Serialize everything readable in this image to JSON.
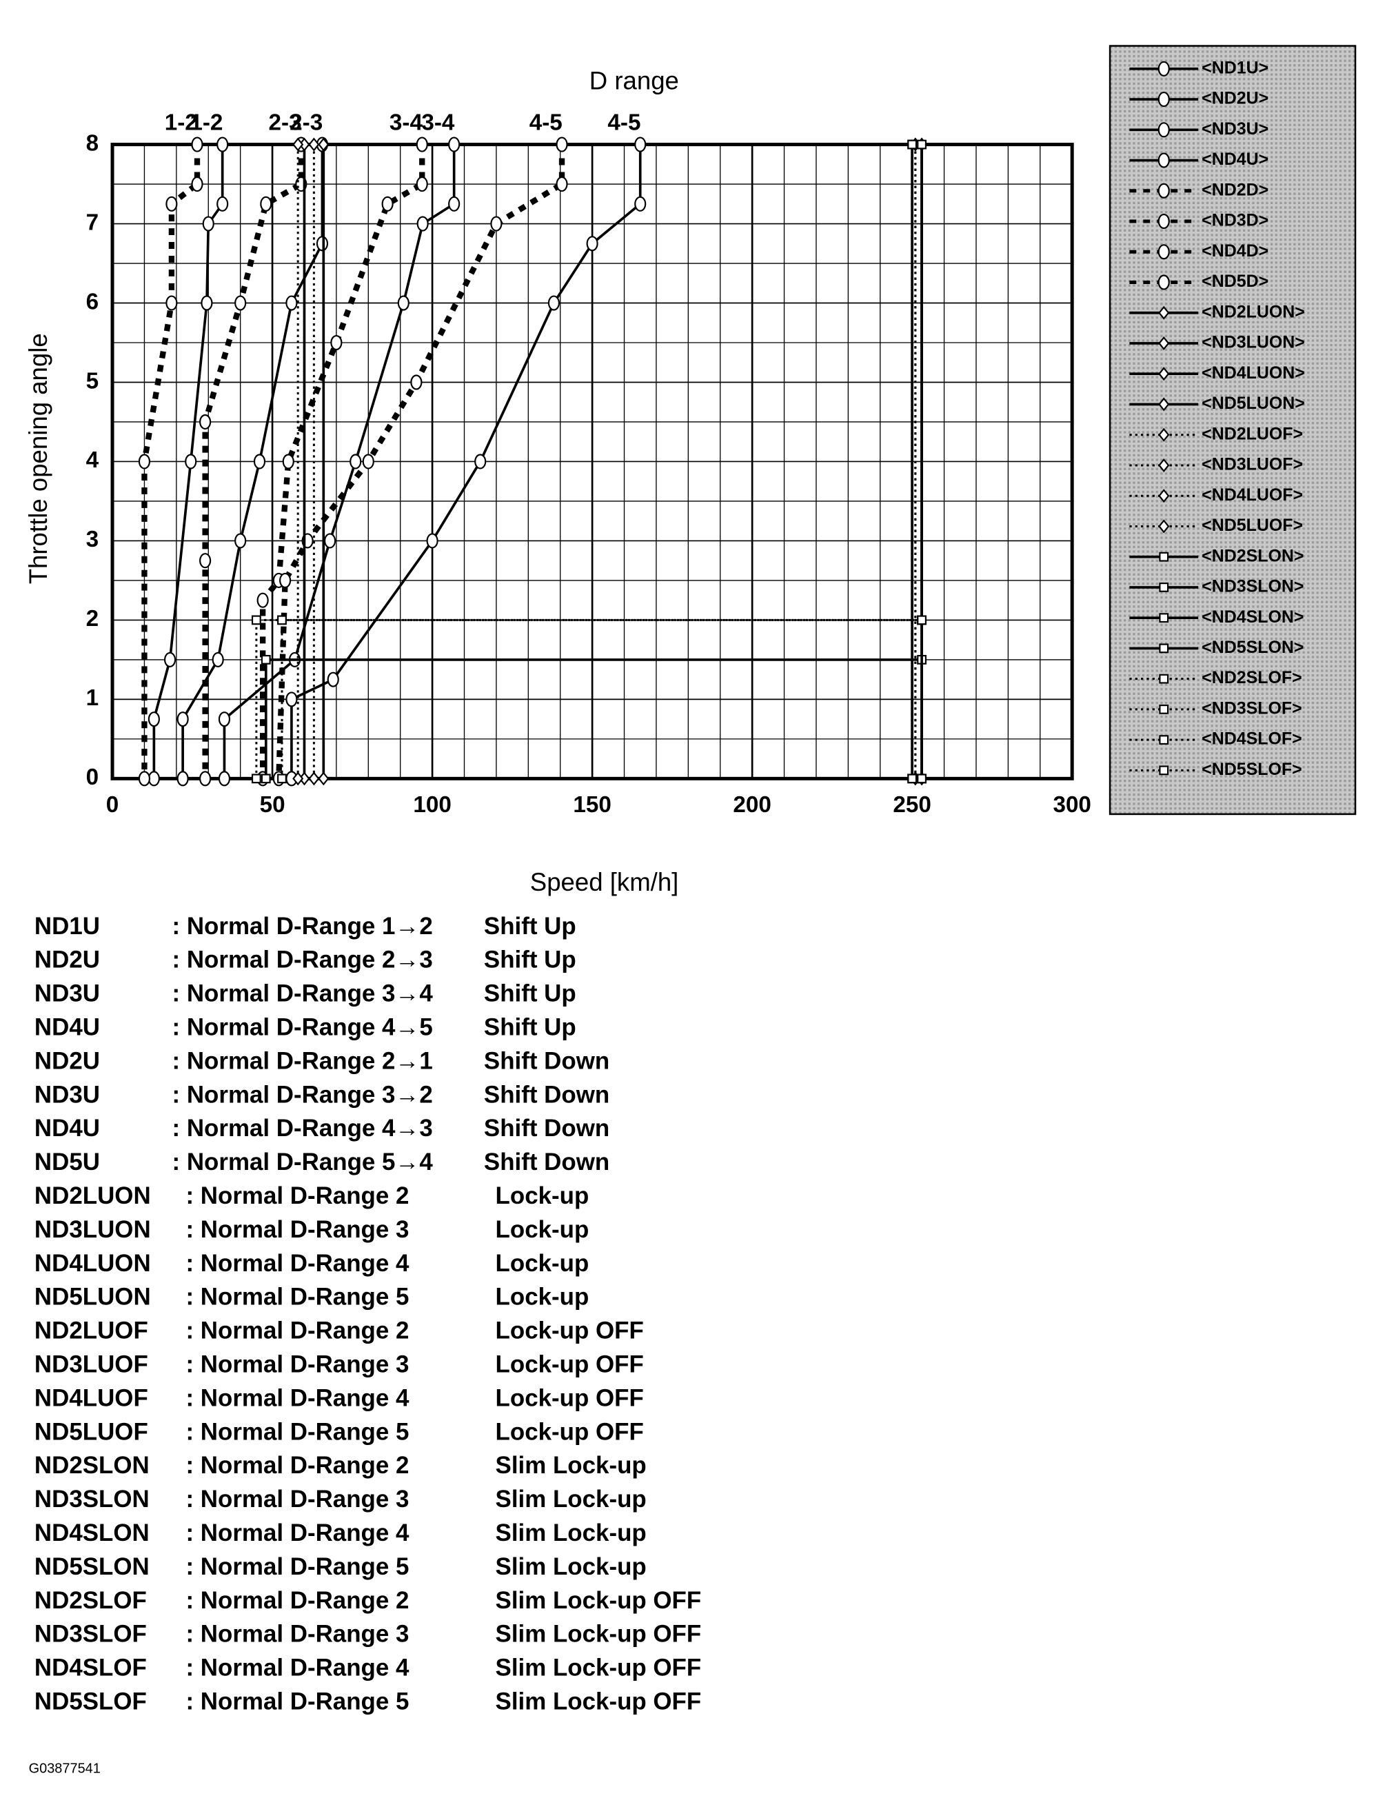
{
  "chart_data": {
    "type": "line",
    "title": "D range",
    "x_label": "Speed [km/h]",
    "y_label": "Throttle opening angle",
    "xlim": [
      0,
      300
    ],
    "ylim": [
      0,
      8
    ],
    "xticks": [
      0,
      50,
      100,
      150,
      200,
      250,
      300
    ],
    "yticks": [
      0,
      1,
      2,
      3,
      4,
      5,
      6,
      7,
      8
    ],
    "grid": true,
    "minor_grid": true,
    "legend": "right",
    "annotations": [
      "1-2",
      "1-2",
      "2-3",
      "2-3",
      "3-4",
      "3-4",
      "4-5",
      "4-5"
    ],
    "series": [
      {
        "name": "<ND1U>",
        "color": "#000",
        "dash": "solid",
        "marker": "circle",
        "x": [
          34.4,
          34.4,
          30,
          29.5,
          24.5,
          18,
          13,
          13
        ],
        "values": [
          8,
          7.25,
          7,
          6,
          4,
          1.5,
          0.75,
          0
        ]
      },
      {
        "name": "<ND2U>",
        "color": "#000",
        "dash": "solid",
        "marker": "circle",
        "x": [
          65.6,
          65.6,
          56,
          46,
          40,
          33,
          22,
          22
        ],
        "values": [
          8,
          6.75,
          6,
          4,
          3,
          1.5,
          0.75,
          0
        ]
      },
      {
        "name": "<ND3U>",
        "color": "#000",
        "dash": "solid",
        "marker": "circle",
        "x": [
          106.8,
          106.8,
          97,
          91,
          76,
          68,
          57,
          35,
          35
        ],
        "values": [
          8,
          7.25,
          7,
          6,
          4,
          3,
          1.5,
          0.75,
          0
        ]
      },
      {
        "name": "<ND4U>",
        "color": "#000",
        "dash": "solid",
        "marker": "circle",
        "x": [
          165,
          165,
          150,
          138,
          115,
          100,
          69,
          56,
          56
        ],
        "values": [
          8,
          7.25,
          6.75,
          6,
          4,
          3,
          1.25,
          1,
          0
        ]
      },
      {
        "name": "<ND2D>",
        "color": "#000",
        "dash": "dashed",
        "marker": "circle",
        "x": [
          26.5,
          26.5,
          18.5,
          18.5,
          10,
          10
        ],
        "values": [
          8,
          7.5,
          7.25,
          6,
          4,
          0
        ]
      },
      {
        "name": "<ND3D>",
        "color": "#000",
        "dash": "dashed",
        "marker": "circle",
        "x": [
          59,
          59,
          48,
          40,
          29,
          29,
          29
        ],
        "values": [
          8,
          7.5,
          7.25,
          6,
          4.5,
          2.75,
          0
        ]
      },
      {
        "name": "<ND4D>",
        "color": "#000",
        "dash": "dashed",
        "marker": "circle",
        "x": [
          96.8,
          96.8,
          86,
          70,
          55,
          52,
          47,
          47
        ],
        "values": [
          8,
          7.5,
          7.25,
          5.5,
          4,
          2.5,
          2.25,
          0
        ]
      },
      {
        "name": "<ND5D>",
        "color": "#000",
        "dash": "dashed",
        "marker": "circle",
        "x": [
          140.5,
          140.5,
          120,
          95,
          80,
          61,
          54,
          52
        ],
        "values": [
          8,
          7.5,
          7,
          5,
          4,
          3,
          2.5,
          0
        ]
      },
      {
        "name": "<ND2LUON>",
        "color": "#000",
        "dash": "solid",
        "marker": "diamond",
        "x": [
          60,
          60
        ],
        "values": [
          0,
          8
        ]
      },
      {
        "name": "<ND3LUON>",
        "color": "#000",
        "dash": "solid",
        "marker": "diamond",
        "x": [
          66,
          66
        ],
        "values": [
          0,
          8
        ]
      },
      {
        "name": "<ND4LUON>",
        "color": "#000",
        "dash": "solid",
        "marker": "diamond",
        "x": [
          253,
          253
        ],
        "values": [
          0,
          8
        ]
      },
      {
        "name": "<ND5LUON>",
        "color": "#000",
        "dash": "solid",
        "marker": "diamond",
        "x": [
          253,
          253
        ],
        "values": [
          0,
          8
        ]
      },
      {
        "name": "<ND2LUOF>",
        "color": "#000",
        "dash": "dotted",
        "marker": "diamond",
        "x": [
          58,
          58
        ],
        "values": [
          0,
          8
        ]
      },
      {
        "name": "<ND3LUOF>",
        "color": "#000",
        "dash": "dotted",
        "marker": "diamond",
        "x": [
          63,
          63
        ],
        "values": [
          0,
          8
        ]
      },
      {
        "name": "<ND4LUOF>",
        "color": "#000",
        "dash": "dotted",
        "marker": "diamond",
        "x": [
          251,
          251
        ],
        "values": [
          0,
          8
        ]
      },
      {
        "name": "<ND5LUOF>",
        "color": "#000",
        "dash": "dotted",
        "marker": "diamond",
        "x": [
          251,
          251
        ],
        "values": [
          0,
          8
        ]
      },
      {
        "name": "<ND2SLON>",
        "color": "#000",
        "dash": "solid",
        "marker": "square",
        "x": [
          48,
          48,
          253
        ],
        "values": [
          0,
          1.5,
          1.5
        ]
      },
      {
        "name": "<ND3SLON>",
        "color": "#000",
        "dash": "solid",
        "marker": "square",
        "x": [
          253,
          253
        ],
        "values": [
          0,
          8
        ]
      },
      {
        "name": "<ND4SLON>",
        "color": "#000",
        "dash": "solid",
        "marker": "square",
        "x": [
          250,
          250
        ],
        "values": [
          0,
          8
        ]
      },
      {
        "name": "<ND5SLON>",
        "color": "#000",
        "dash": "solid",
        "marker": "square",
        "x": [
          250,
          250
        ],
        "values": [
          0,
          8
        ]
      },
      {
        "name": "<ND2SLOF>",
        "color": "#000",
        "dash": "dotted",
        "marker": "square",
        "x": [
          45,
          45,
          253
        ],
        "values": [
          0,
          2,
          2
        ]
      },
      {
        "name": "<ND3SLOF>",
        "color": "#000",
        "dash": "dotted",
        "marker": "square",
        "x": [
          53,
          53,
          253
        ],
        "values": [
          0,
          2,
          2
        ]
      },
      {
        "name": "<ND4SLOF>",
        "color": "#000",
        "dash": "dotted",
        "marker": "square",
        "x": [
          253,
          253
        ],
        "values": [
          0,
          2
        ]
      },
      {
        "name": "<ND5SLOF>",
        "color": "#000",
        "dash": "dotted",
        "marker": "square",
        "x": [
          253,
          253
        ],
        "values": [
          0,
          2
        ]
      }
    ]
  },
  "definitions": [
    [
      "ND1U",
      ": Normal D-Range  1→2",
      "Shift Up"
    ],
    [
      "ND2U",
      ": Normal D-Range  2→3",
      "Shift Up"
    ],
    [
      "ND3U",
      ": Normal D-Range  3→4",
      "Shift Up"
    ],
    [
      "ND4U",
      ": Normal D-Range  4→5",
      "Shift Up"
    ],
    [
      "ND2U",
      ": Normal D-Range  2→1",
      "Shift Down"
    ],
    [
      "ND3U",
      ": Normal D-Range  3→2",
      "Shift Down"
    ],
    [
      "ND4U",
      ": Normal D-Range  4→3",
      "Shift Down"
    ],
    [
      "ND5U",
      ": Normal D-Range  5→4",
      "Shift Down"
    ],
    [
      "ND2LUON",
      ": Normal D-Range 2",
      "Lock-up"
    ],
    [
      "ND3LUON",
      ": Normal D-Range 3",
      "Lock-up"
    ],
    [
      "ND4LUON",
      ": Normal D-Range 4",
      "Lock-up"
    ],
    [
      "ND5LUON",
      ": Normal D-Range 5",
      "Lock-up"
    ],
    [
      "ND2LUOF",
      ": Normal D-Range 2",
      "Lock-up OFF"
    ],
    [
      "ND3LUOF",
      ": Normal D-Range 3",
      "Lock-up OFF"
    ],
    [
      "ND4LUOF",
      ": Normal D-Range 4",
      "Lock-up OFF"
    ],
    [
      "ND5LUOF",
      ": Normal D-Range 5",
      "Lock-up OFF"
    ],
    [
      "ND2SLON",
      ": Normal D-Range 2",
      "Slim Lock-up"
    ],
    [
      "ND3SLON",
      ": Normal D-Range 3",
      "Slim Lock-up"
    ],
    [
      "ND4SLON",
      ": Normal D-Range 4",
      "Slim Lock-up"
    ],
    [
      "ND5SLON",
      ": Normal D-Range 5",
      "Slim Lock-up"
    ],
    [
      "ND2SLOF",
      ": Normal D-Range 2",
      "Slim Lock-up OFF"
    ],
    [
      "ND3SLOF",
      ": Normal D-Range 3",
      "Slim Lock-up OFF"
    ],
    [
      "ND4SLOF",
      ": Normal D-Range 4",
      "Slim Lock-up OFF"
    ],
    [
      "ND5SLOF",
      ": Normal D-Range 5",
      "Slim Lock-up OFF"
    ]
  ],
  "figure_id": "G03877541"
}
